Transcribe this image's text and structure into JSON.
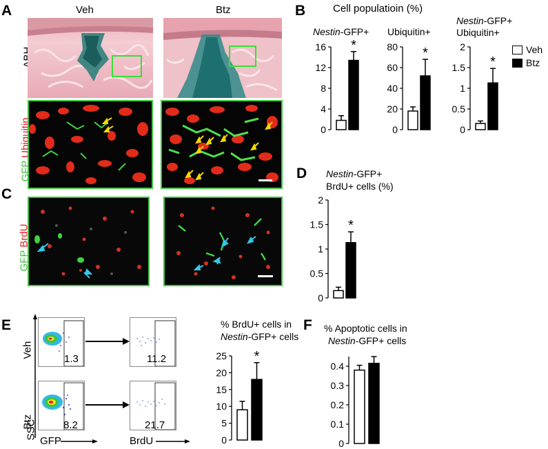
{
  "panels": {
    "A": {
      "letter": "A",
      "col_veh": "Veh",
      "col_btz": "Btz",
      "row1_label": "ABH",
      "row2_label_green": "GFP",
      "row2_label_red": "Ubiquitin"
    },
    "B": {
      "letter": "B",
      "title": "Cell populatioin (%)",
      "legend": {
        "veh": "Veh",
        "btz": "Btz",
        "placement": "right"
      }
    },
    "C": {
      "letter": "C",
      "label_green": "GFP",
      "label_red": "BrdU"
    },
    "D": {
      "letter": "D",
      "title_italic": "Nestin",
      "title_rest": "-GFP+",
      "title_line2": "BrdU+ cells (%)"
    },
    "E": {
      "letter": "E",
      "row_veh": "Veh",
      "row_btz": "Btz",
      "axis_y": "SSC",
      "axis_x1": "GFP",
      "axis_x2": "BrdU",
      "gate_veh_gfp": "1.3",
      "gate_veh_brdu": "11.2",
      "gate_btz_gfp": "8.2",
      "gate_btz_brdu": "21.7",
      "chart_title_line1": "% BrdU+ cells in",
      "chart_title_italic": "Nestin",
      "chart_title_rest": "-GFP+ cells"
    },
    "F": {
      "letter": "F",
      "chart_title_line1": "% Apoptotic cells in",
      "chart_title_italic": "Nestin",
      "chart_title_rest": "-GFP+ cells"
    }
  },
  "chart_data": [
    {
      "id": "B1",
      "type": "bar",
      "title_italic": "Nestin",
      "title": "-GFP+",
      "categories": [
        "Veh",
        "Btz"
      ],
      "values": [
        1.8,
        13.4
      ],
      "errors": [
        0.9,
        1.7
      ],
      "ylim": [
        0,
        16
      ],
      "yticks": [
        "0",
        "4",
        "8",
        "12",
        "16"
      ],
      "significance": [
        "",
        "*"
      ]
    },
    {
      "id": "B2",
      "type": "bar",
      "title": "Ubiquitin+",
      "categories": [
        "Veh",
        "Btz"
      ],
      "values": [
        18,
        52
      ],
      "errors": [
        4,
        16
      ],
      "ylim": [
        0,
        80
      ],
      "yticks": [
        "0",
        "20",
        "40",
        "60",
        "80"
      ],
      "significance": [
        "",
        "*"
      ]
    },
    {
      "id": "B3",
      "type": "bar",
      "title_italic": "Nestin",
      "title": "-GFP+",
      "title_line2": "Ubiquitin+",
      "categories": [
        "Veh",
        "Btz"
      ],
      "values": [
        0.15,
        1.13
      ],
      "errors": [
        0.06,
        0.35
      ],
      "ylim": [
        0,
        2
      ],
      "yticks": [
        "0",
        "0.5",
        "1",
        "1.5",
        "2"
      ],
      "significance": [
        "",
        "*"
      ]
    },
    {
      "id": "D",
      "type": "bar",
      "categories": [
        "Veh",
        "Btz"
      ],
      "values": [
        0.15,
        1.13
      ],
      "errors": [
        0.07,
        0.22
      ],
      "ylim": [
        0,
        2
      ],
      "yticks": [
        "0",
        "0.5",
        "1",
        "1.5",
        "2"
      ],
      "significance": [
        "",
        "*"
      ]
    },
    {
      "id": "E",
      "type": "bar",
      "categories": [
        "Veh",
        "Btz"
      ],
      "values": [
        9,
        18
      ],
      "errors": [
        2.5,
        5
      ],
      "ylim": [
        0,
        25
      ],
      "yticks": [
        "0",
        "5",
        "10",
        "15",
        "20",
        "25"
      ],
      "significance": [
        "",
        "*"
      ]
    },
    {
      "id": "F",
      "type": "bar",
      "categories": [
        "Veh",
        "Btz"
      ],
      "values": [
        0.38,
        0.415
      ],
      "errors": [
        0.025,
        0.035
      ],
      "ylim": [
        0,
        0.45
      ],
      "yticks": [
        "0",
        "0.1",
        "0.2",
        "0.3",
        "0.4"
      ],
      "significance": [
        "",
        ""
      ]
    }
  ]
}
